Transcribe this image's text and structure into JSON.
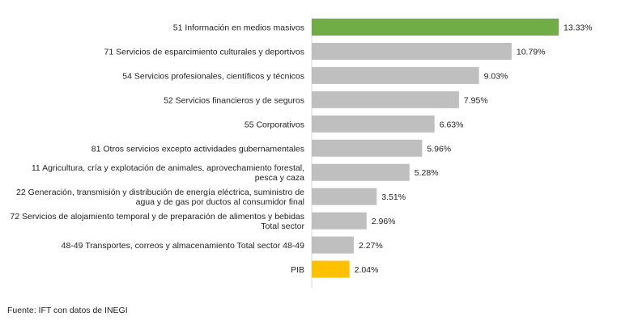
{
  "chart_data": {
    "type": "bar",
    "orientation": "horizontal",
    "categories": [
      [
        "51 Información en medios masivos"
      ],
      [
        "71 Servicios de esparcimiento culturales y deportivos"
      ],
      [
        "54 Servicios profesionales, científicos y técnicos"
      ],
      [
        "52 Servicios financieros y de seguros"
      ],
      [
        "55 Corporativos"
      ],
      [
        "81 Otros servicios excepto actividades gubernamentales"
      ],
      [
        "11 Agricultura, cría y explotación de animales, aprovechamiento forestal,",
        "pesca y caza"
      ],
      [
        "22 Generación, transmisión y distribución de energía eléctrica, suministro de",
        "agua y de gas por ductos al consumidor final"
      ],
      [
        "72 Servicios de alojamiento temporal y de preparación de alimentos y bebidas",
        "Total sector"
      ],
      [
        "48-49  Transportes, correos y almacenamiento Total sector 48-49"
      ],
      [
        "PIB"
      ]
    ],
    "values": [
      13.33,
      10.79,
      9.03,
      7.95,
      6.63,
      5.96,
      5.28,
      3.51,
      2.96,
      2.27,
      2.04
    ],
    "value_labels": [
      "13.33%",
      "10.79%",
      "9.03%",
      "7.95%",
      "6.63%",
      "5.96%",
      "5.28%",
      "3.51%",
      "2.96%",
      "2.27%",
      "2.04%"
    ],
    "colors": [
      "#70AD47",
      "#BFBFBF",
      "#BFBFBF",
      "#BFBFBF",
      "#BFBFBF",
      "#BFBFBF",
      "#BFBFBF",
      "#BFBFBF",
      "#BFBFBF",
      "#BFBFBF",
      "#FFC000"
    ],
    "xlim": [
      0,
      13.33
    ],
    "grid": false,
    "legend": "none"
  },
  "footer": {
    "source": "Fuente: IFT con datos de INEGI"
  }
}
